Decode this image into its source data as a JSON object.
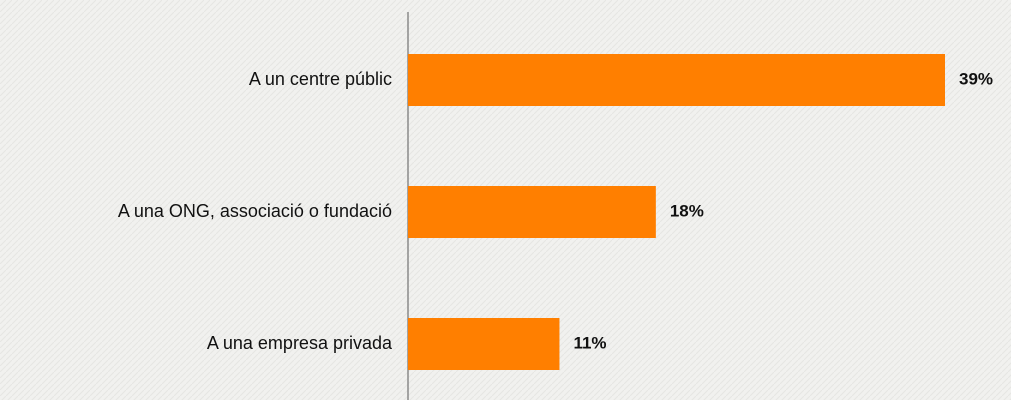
{
  "chart_data": {
    "type": "bar",
    "orientation": "horizontal",
    "categories": [
      "A un centre públic",
      "A una ONG, associació o fundació",
      "A una empresa privada"
    ],
    "values": [
      39,
      18,
      11
    ],
    "value_labels": [
      "39%",
      "18%",
      "11%"
    ],
    "color": "#ff7f00"
  }
}
